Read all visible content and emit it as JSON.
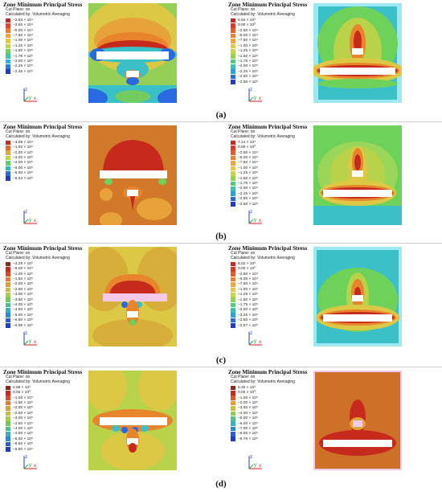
{
  "panels": [
    {
      "title": "Zone Minimum Principal Stress",
      "cut_plane": "Cut Plane: on",
      "calculated_by": "Calculated by: Volumetric Averaging",
      "legend": [
        "−2.93 × 10⁴",
        "−2.50 × 10⁴",
        "−5.00 × 10⁴",
        "−7.50 × 10⁴",
        "−1.00 × 10⁵",
        "−1.25 × 10⁵",
        "−1.50 × 10⁵",
        "−1.75 × 10⁵",
        "−2.00 × 10⁵",
        "−2.25 × 10⁵",
        "−2.45 × 10⁵"
      ],
      "colors": [
        "#c8281e",
        "#e8462a",
        "#f07a2e",
        "#f4a43a",
        "#e6c842",
        "#b8d846",
        "#6ed25a",
        "#3cc8a0",
        "#2ab2d8",
        "#2a7ae0",
        "#1e3cc8"
      ]
    },
    {
      "title": "Zone Minimum Principal Stress",
      "cut_plane": "Cut Plane: on",
      "calculated_by": "Calculated by: Volumetric Averaging",
      "legend": [
        "6.94 × 10³",
        "0.00 × 10⁰",
        "−2.50 × 10⁴",
        "−5.00 × 10⁴",
        "−7.50 × 10⁴",
        "−1.00 × 10⁵",
        "−1.25 × 10⁵",
        "−1.50 × 10⁵",
        "−1.75 × 10⁵",
        "−2.00 × 10⁵",
        "−2.25 × 10⁵",
        "−2.50 × 10⁵",
        "−2.55 × 10⁵"
      ],
      "colors": [
        "#c8281e",
        "#dc3a26",
        "#ea5a2a",
        "#f07e30",
        "#f4a43a",
        "#eac444",
        "#c8d646",
        "#8ed44e",
        "#52cc74",
        "#3cc0b0",
        "#2aa0dc",
        "#2a6ae0",
        "#1e3cc8"
      ]
    },
    {
      "title": "Zone Minimum Principal Stress",
      "cut_plane": "Cut Plane: on",
      "calculated_by": "Calculated by: Volumetric Averaging",
      "legend": [
        "−3.08 × 10⁴",
        "−1.00 × 10⁵",
        "−2.00 × 10⁵",
        "−3.00 × 10⁵",
        "−4.00 × 10⁵",
        "−5.00 × 10⁵",
        "−6.00 × 10⁵",
        "−6.04 × 10⁵"
      ],
      "colors": [
        "#c8281e",
        "#e06a2a",
        "#e2a83a",
        "#b8d846",
        "#5cd066",
        "#2ab2d8",
        "#2a6ae0",
        "#1e3cc8"
      ]
    },
    {
      "title": "Zone Minimum Principal Stress",
      "cut_plane": "Cut Plane: on",
      "calculated_by": "Calculated by: Volumetric Averaging",
      "legend": [
        "7.14 × 10³",
        "0.00 × 10⁰",
        "−2.50 × 10⁴",
        "−5.00 × 10⁴",
        "−7.50 × 10⁴",
        "−1.00 × 10⁵",
        "−1.25 × 10⁵",
        "−1.50 × 10⁵",
        "−1.75 × 10⁵",
        "−2.00 × 10⁵",
        "−2.25 × 10⁵",
        "−2.50 × 10⁵",
        "−2.56 × 10⁵"
      ],
      "colors": [
        "#c8281e",
        "#dc3a26",
        "#ea5a2a",
        "#f07e30",
        "#f4a43a",
        "#eac444",
        "#c8d646",
        "#8ed44e",
        "#52cc74",
        "#3cc0b0",
        "#2aa0dc",
        "#2a6ae0",
        "#1e3cc8"
      ]
    },
    {
      "title": "Zone Minimum Principal Stress",
      "cut_plane": "Cut Plane: on",
      "calculated_by": "Calculated by: Volumetric Averaging",
      "legend": [
        "−3.29 × 10³",
        "−5.00 × 10⁴",
        "−1.00 × 10⁵",
        "−1.50 × 10⁵",
        "−2.00 × 10⁵",
        "−2.50 × 10⁵",
        "−3.00 × 10⁵",
        "−3.50 × 10⁵",
        "−4.00 × 10⁵",
        "−4.50 × 10⁵",
        "−5.00 × 10⁵",
        "−5.50 × 10⁵",
        "−5.98 × 10⁵"
      ],
      "colors": [
        "#8a2a1e",
        "#c8281e",
        "#dc4a26",
        "#e87a30",
        "#d8a03a",
        "#c8bc44",
        "#a8cc48",
        "#72c85a",
        "#48c08a",
        "#38b0c0",
        "#2a8ad8",
        "#2a5ae0",
        "#1e3cc8"
      ]
    },
    {
      "title": "Zone Minimum Principal Stress",
      "cut_plane": "Cut Plane: on",
      "calculated_by": "Calculated by: Volumetric Averaging",
      "legend": [
        "6.02 × 10³",
        "0.00 × 10⁰",
        "−2.50 × 10⁴",
        "−5.00 × 10⁴",
        "−7.50 × 10⁴",
        "−1.00 × 10⁵",
        "−1.25 × 10⁵",
        "−1.50 × 10⁵",
        "−1.75 × 10⁵",
        "−2.00 × 10⁵",
        "−2.25 × 10⁵",
        "−2.50 × 10⁵",
        "−2.57 × 10⁵"
      ],
      "colors": [
        "#c8281e",
        "#dc3a26",
        "#ea5a2a",
        "#f07e30",
        "#f4a43a",
        "#eac444",
        "#c8d646",
        "#8ed44e",
        "#52cc74",
        "#3cc0b0",
        "#2aa0dc",
        "#2a6ae0",
        "#1e3cc8"
      ]
    },
    {
      "title": "Zone Minimum Principal Stress",
      "cut_plane": "Cut Plane: on",
      "calculated_by": "Calculated by: Volumetric Averaging",
      "legend": [
        "4.69 × 10³",
        "0.00 × 10⁰",
        "−1.00 × 10⁵",
        "−1.50 × 10⁵",
        "−2.00 × 10⁵",
        "−2.50 × 10⁵",
        "−3.00 × 10⁵",
        "−3.50 × 10⁵",
        "−4.00 × 10⁵",
        "−4.50 × 10⁵",
        "−5.00 × 10⁵",
        "−5.50 × 10⁵",
        "−5.90 × 10⁵"
      ],
      "colors": [
        "#8a2a1e",
        "#c8281e",
        "#dc4a26",
        "#e87a30",
        "#d8a03a",
        "#c8bc44",
        "#a8cc48",
        "#72c85a",
        "#48c08a",
        "#38b0c0",
        "#2a8ad8",
        "#2a5ae0",
        "#1e3cc8"
      ]
    },
    {
      "title": "Zone Minimum Principal Stress",
      "cut_plane": "Cut Plane: on",
      "calculated_by": "Calculated by: Volumetric Averaging",
      "legend": [
        "5.30 × 10³",
        "0.00 × 10⁰",
        "−1.00 × 10⁵",
        "−2.00 × 10⁵",
        "−3.00 × 10⁵",
        "−4.00 × 10⁵",
        "−5.00 × 10⁵",
        "−6.00 × 10⁵",
        "−7.00 × 10⁵",
        "−8.00 × 10⁵",
        "−8.76 × 10⁵"
      ],
      "colors": [
        "#8a2a1e",
        "#c8281e",
        "#dc5a2a",
        "#e89a36",
        "#c8c044",
        "#8ece52",
        "#4cc482",
        "#38b0c0",
        "#2a8ad8",
        "#2a5ae0",
        "#1e3cc8"
      ]
    }
  ],
  "axis_labels": {
    "z": "z",
    "y": "y",
    "x": "x"
  },
  "captions": [
    "(a)",
    "(b)",
    "(c)",
    "(d)"
  ],
  "colors": {
    "deep_red": "#c62a1c",
    "dark_red": "#8a2a1e",
    "orange": "#e8842c",
    "orange_brown": "#d2782a",
    "yellow": "#dcc844",
    "yellow_green": "#b8d24a",
    "green": "#6ed25a",
    "light_green": "#9ad65a",
    "cyan": "#3cc0c8",
    "light_cyan": "#9ee8f2",
    "blue": "#2a6ae0",
    "deep_blue": "#1e3cc8",
    "white": "#ffffff",
    "pink": "#f4c8e8",
    "axis_z": "#1e3cc8",
    "axis_y": "#22a63a",
    "axis_x": "#d22222"
  }
}
